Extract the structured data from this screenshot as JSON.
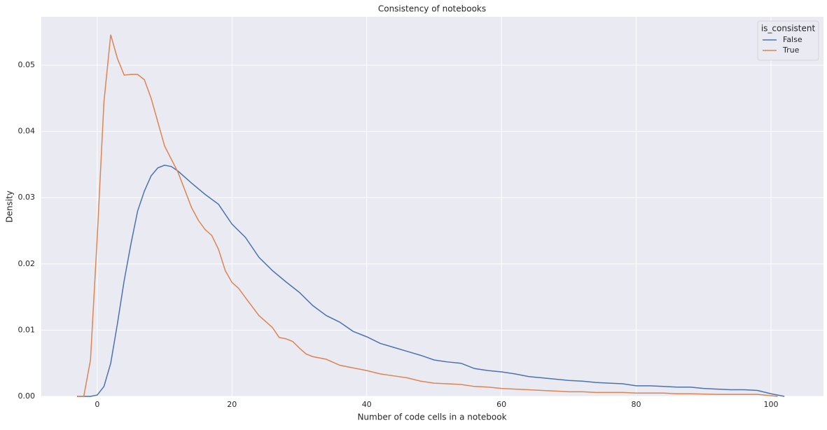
{
  "chart_data": {
    "type": "line",
    "title": "Consistency of notebooks",
    "x_label": "Number of code cells in a notebook",
    "y_label": "Density",
    "legend_title": "is_consistent",
    "legend_position": "upper right",
    "grid": true,
    "xlim": [
      -8.3,
      107.8
    ],
    "ylim": [
      0,
      0.0573
    ],
    "xticks": [
      0,
      20,
      40,
      60,
      80,
      100
    ],
    "yticks": [
      {
        "value": 0,
        "label": "0.00"
      },
      0.01,
      0.02,
      0.03,
      0.04,
      0.05
    ],
    "series": [
      {
        "name": "False",
        "color": "#4c72b0",
        "x": [
          -3,
          -1,
          0,
          1,
          2,
          3,
          4,
          5,
          6,
          7,
          8,
          9,
          10,
          11,
          12,
          14,
          16,
          18,
          20,
          22,
          24,
          26,
          28,
          30,
          32,
          34,
          36,
          38,
          40,
          42,
          44,
          46,
          48,
          50,
          52,
          54,
          56,
          58,
          60,
          62,
          64,
          66,
          68,
          70,
          72,
          74,
          76,
          78,
          80,
          82,
          84,
          86,
          88,
          90,
          92,
          94,
          96,
          98,
          100,
          102
        ],
        "values": [
          0,
          0,
          0.0002,
          0.0015,
          0.005,
          0.011,
          0.0175,
          0.023,
          0.028,
          0.031,
          0.0333,
          0.0345,
          0.0349,
          0.0347,
          0.034,
          0.0322,
          0.0305,
          0.029,
          0.026,
          0.024,
          0.021,
          0.019,
          0.0173,
          0.0157,
          0.0137,
          0.0122,
          0.0112,
          0.0098,
          0.009,
          0.008,
          0.0074,
          0.0068,
          0.0062,
          0.0055,
          0.0052,
          0.005,
          0.0042,
          0.0039,
          0.0037,
          0.0034,
          0.003,
          0.0028,
          0.0026,
          0.0024,
          0.0023,
          0.0021,
          0.002,
          0.0019,
          0.0016,
          0.0016,
          0.0015,
          0.0014,
          0.0014,
          0.0012,
          0.0011,
          0.001,
          0.001,
          0.0009,
          0.0004,
          0
        ]
      },
      {
        "name": "True",
        "color": "#dd8452",
        "x": [
          -3,
          -2,
          -1,
          0,
          1,
          2,
          3,
          4,
          5,
          6,
          7,
          8,
          10,
          12,
          14,
          15,
          16,
          17,
          18,
          19,
          20,
          21,
          22,
          24,
          25,
          26,
          27,
          28,
          29,
          30,
          31,
          32,
          34,
          36,
          38,
          40,
          42,
          44,
          46,
          48,
          50,
          52,
          54,
          56,
          58,
          60,
          62,
          64,
          66,
          68,
          70,
          72,
          74,
          76,
          78,
          80,
          84,
          86,
          88,
          92,
          96,
          98,
          100,
          101
        ],
        "values": [
          0,
          0,
          0.0055,
          0.024,
          0.0445,
          0.0546,
          0.051,
          0.0485,
          0.0486,
          0.0486,
          0.0478,
          0.045,
          0.0378,
          0.0338,
          0.0285,
          0.0266,
          0.0252,
          0.0243,
          0.0222,
          0.019,
          0.0172,
          0.0163,
          0.0149,
          0.0122,
          0.0113,
          0.0104,
          0.0089,
          0.0087,
          0.0083,
          0.0073,
          0.0064,
          0.006,
          0.0056,
          0.0047,
          0.0043,
          0.0039,
          0.0034,
          0.0031,
          0.0028,
          0.0023,
          0.002,
          0.0019,
          0.0018,
          0.0015,
          0.0014,
          0.0012,
          0.0011,
          0.001,
          0.0009,
          0.0008,
          0.0007,
          0.0007,
          0.0006,
          0.0006,
          0.0006,
          0.0005,
          0.0005,
          0.0004,
          0.0004,
          0.0003,
          0.0003,
          0.0003,
          0.0001,
          0
        ]
      }
    ]
  }
}
